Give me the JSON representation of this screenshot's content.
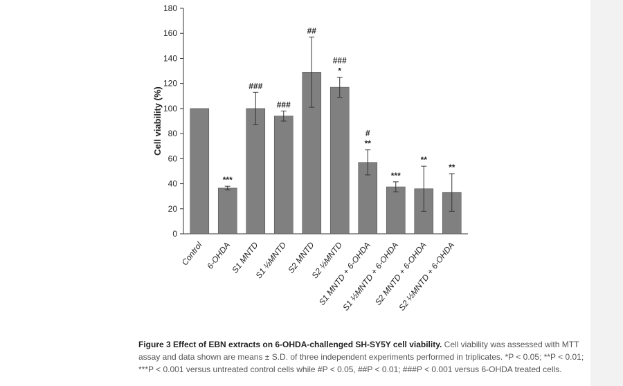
{
  "chart_data": {
    "type": "bar",
    "ylabel": "Cell viability (%)",
    "xlabel": "",
    "ylim": [
      0,
      180
    ],
    "yticks": [
      0,
      20,
      40,
      60,
      80,
      100,
      120,
      140,
      160,
      180
    ],
    "grid": false,
    "categories": [
      "Control",
      "6-OHDA",
      "S1 MNTD",
      "S1 ½MNTD",
      "S2 MNTD",
      "S2 ½MNTD",
      "S1 MNTD + 6-OHDA",
      "S1 ½MNTD + 6-OHDA",
      "S2 MNTD + 6-OHDA",
      "S2 ½MNTD + 6-OHDA"
    ],
    "values": [
      100,
      36.5,
      100,
      94,
      129,
      117,
      57,
      37.5,
      36,
      33
    ],
    "errors": [
      0,
      1.5,
      13,
      4,
      28,
      8,
      10,
      4,
      18,
      15
    ],
    "annotations": [
      [],
      [
        "***"
      ],
      [
        "###"
      ],
      [
        "###"
      ],
      [
        "##"
      ],
      [
        "###",
        "*"
      ],
      [
        "#",
        "**"
      ],
      [
        "***"
      ],
      [
        "**"
      ],
      [
        "**"
      ]
    ],
    "bar_color": "#808080"
  },
  "caption": {
    "lead": "Figure 3 Effect of EBN extracts on 6-OHDA-challenged SH-SY5Y cell viability.",
    "body": " Cell viability was assessed with MTT assay and data shown are means ± S.D. of three independent experiments performed in triplicates. *P < 0.05; **P < 0.01; ***P < 0.001 versus untreated control cells while #P < 0.05, ##P < 0.01; ###P < 0.001 versus 6-OHDA treated cells."
  }
}
